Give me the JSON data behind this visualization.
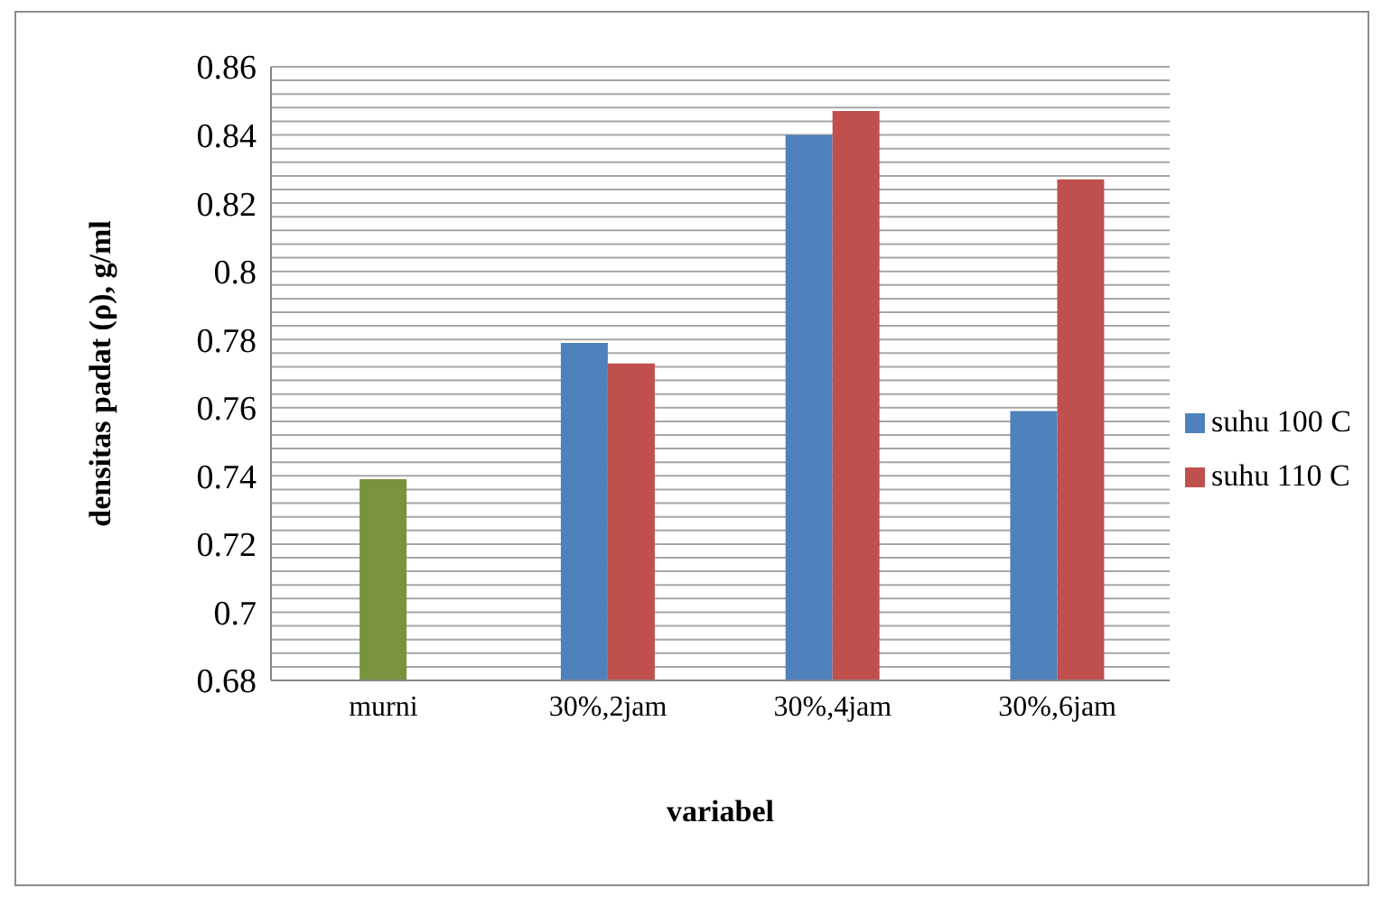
{
  "chart_data": {
    "type": "bar",
    "xlabel": "variabel",
    "ylabel": "densitas padat (ρ), g/ml",
    "categories": [
      "murni",
      "30%,2jam",
      "30%,4jam",
      "30%,6jam"
    ],
    "series": [
      {
        "name": "suhu 100 C",
        "color": "#4f81bd",
        "colors": [
          "#77933c",
          "#4f81bd",
          "#4f81bd",
          "#4f81bd"
        ],
        "values": [
          0.739,
          0.779,
          0.84,
          0.759
        ]
      },
      {
        "name": "suhu 110 C",
        "color": "#c0504d",
        "values": [
          null,
          0.773,
          0.847,
          0.827
        ]
      }
    ],
    "ylim": [
      0.68,
      0.86
    ],
    "yticks": [
      0.68,
      {
        "value": 0.684,
        "label": null
      },
      {
        "value": 0.688,
        "label": null
      },
      {
        "value": 0.692,
        "label": null
      },
      {
        "value": 0.696,
        "label": null
      },
      0.7,
      {
        "value": 0.704,
        "label": null
      },
      {
        "value": 0.708,
        "label": null
      },
      {
        "value": 0.712,
        "label": null
      },
      {
        "value": 0.716,
        "label": null
      },
      0.72,
      {
        "value": 0.724,
        "label": null
      },
      {
        "value": 0.728,
        "label": null
      },
      {
        "value": 0.732,
        "label": null
      },
      {
        "value": 0.736,
        "label": null
      },
      0.74,
      {
        "value": 0.744,
        "label": null
      },
      {
        "value": 0.748,
        "label": null
      },
      {
        "value": 0.752,
        "label": null
      },
      {
        "value": 0.756,
        "label": null
      },
      0.76,
      {
        "value": 0.764,
        "label": null
      },
      {
        "value": 0.768,
        "label": null
      },
      {
        "value": 0.772,
        "label": null
      },
      {
        "value": 0.776,
        "label": null
      },
      0.78,
      {
        "value": 0.784,
        "label": null
      },
      {
        "value": 0.788,
        "label": null
      },
      {
        "value": 0.792,
        "label": null
      },
      {
        "value": 0.796,
        "label": null
      },
      0.8,
      {
        "value": 0.804,
        "label": null
      },
      {
        "value": 0.808,
        "label": null
      },
      {
        "value": 0.812,
        "label": null
      },
      {
        "value": 0.816,
        "label": null
      },
      0.82,
      {
        "value": 0.824,
        "label": null
      },
      {
        "value": 0.828,
        "label": null
      },
      {
        "value": 0.832,
        "label": null
      },
      {
        "value": 0.836,
        "label": null
      },
      0.84,
      {
        "value": 0.844,
        "label": null
      },
      {
        "value": 0.848,
        "label": null
      },
      {
        "value": 0.852,
        "label": null
      },
      {
        "value": 0.856,
        "label": null
      },
      0.86
    ],
    "grid": "y",
    "legend": "right"
  }
}
